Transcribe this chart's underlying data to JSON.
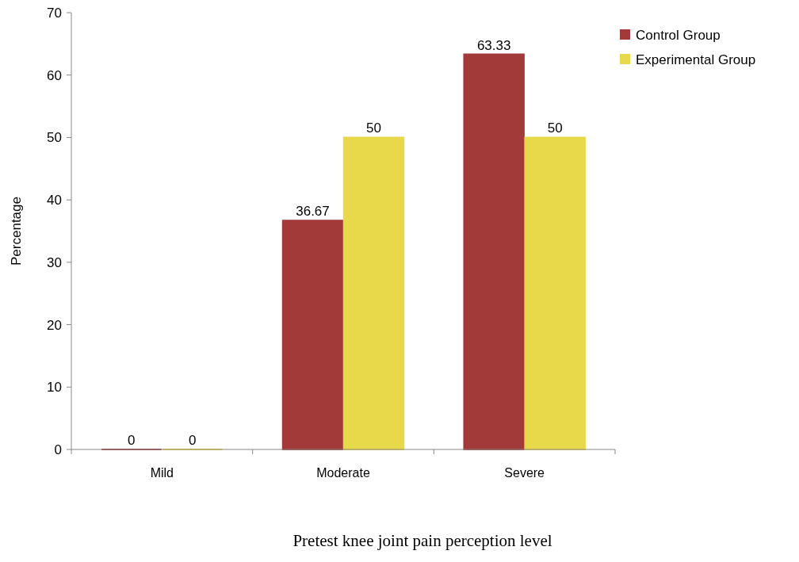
{
  "chart_data": {
    "type": "bar",
    "xlabel": "Pretest knee joint pain perception level",
    "ylabel": "Percentage",
    "categories": [
      "Mild",
      "Moderate",
      "Severe"
    ],
    "series": [
      {
        "name": "Control Group",
        "color": "#a33a3a",
        "values": [
          0,
          36.67,
          63.33
        ]
      },
      {
        "name": "Experimental Group",
        "color": "#e8d94a",
        "values": [
          0,
          50,
          50
        ]
      }
    ],
    "ylim": [
      0,
      70
    ],
    "yticks": [
      0,
      10,
      20,
      30,
      40,
      50,
      60,
      70
    ],
    "data_labels": true,
    "legend": "top right",
    "grid": false
  }
}
